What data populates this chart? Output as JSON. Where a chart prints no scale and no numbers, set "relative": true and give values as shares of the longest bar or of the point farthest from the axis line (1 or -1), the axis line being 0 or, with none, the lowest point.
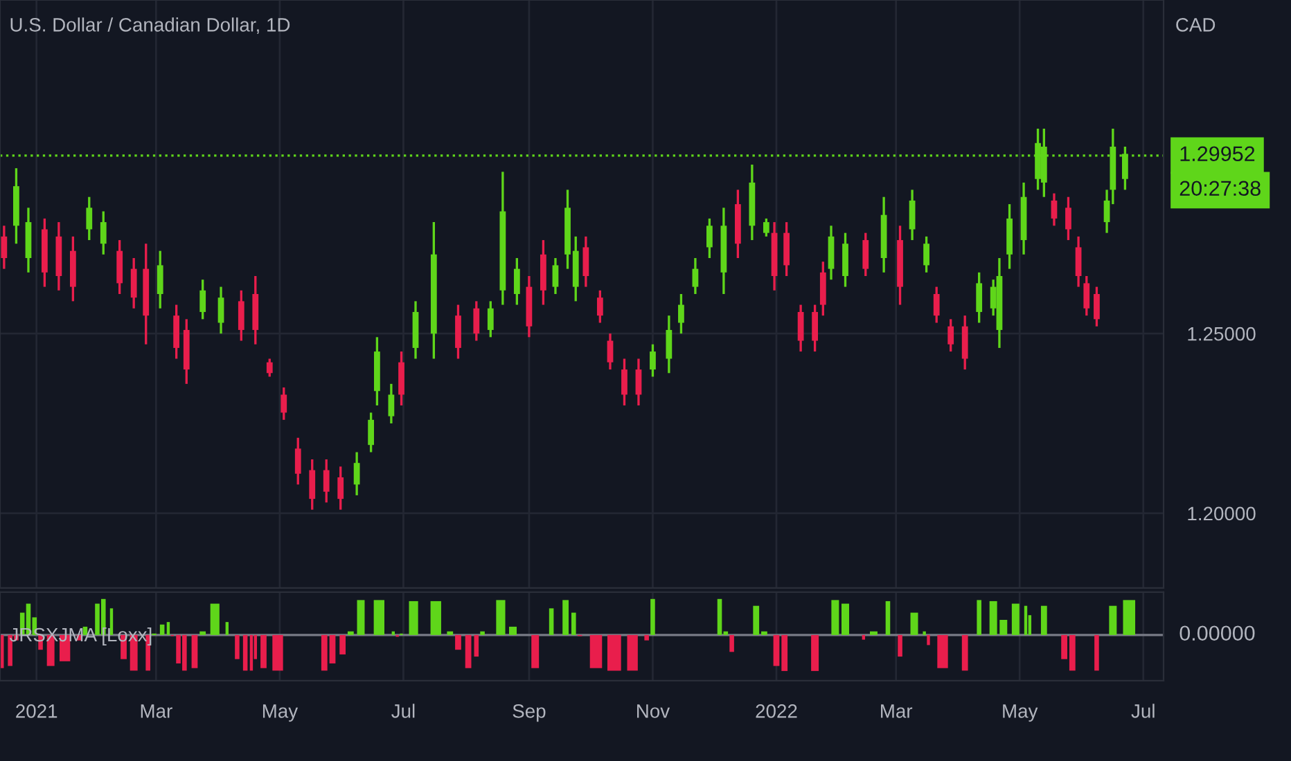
{
  "chart_data": [
    {
      "type": "candlestick",
      "title": "U.S. Dollar / Canadian Dollar, 1D",
      "ylabel": "CAD",
      "x": [
        "2020-12-16",
        "2020-12-22",
        "2020-12-28",
        "2021-01-05",
        "2021-01-12",
        "2021-01-19",
        "2021-01-27",
        "2021-02-03",
        "2021-02-11",
        "2021-02-18",
        "2021-02-24",
        "2021-03-03",
        "2021-03-11",
        "2021-03-16",
        "2021-03-24",
        "2021-04-02",
        "2021-04-12",
        "2021-04-19",
        "2021-04-26",
        "2021-05-03",
        "2021-05-10",
        "2021-05-17",
        "2021-05-24",
        "2021-05-31",
        "2021-06-08",
        "2021-06-15",
        "2021-06-18",
        "2021-06-25",
        "2021-06-30",
        "2021-07-07",
        "2021-07-16",
        "2021-07-28",
        "2021-08-06",
        "2021-08-13",
        "2021-08-19",
        "2021-08-26",
        "2021-09-01",
        "2021-09-08",
        "2021-09-14",
        "2021-09-20",
        "2021-09-24",
        "2021-09-29",
        "2021-10-06",
        "2021-10-11",
        "2021-10-18",
        "2021-10-25",
        "2021-11-01",
        "2021-11-09",
        "2021-11-15",
        "2021-11-22",
        "2021-11-29",
        "2021-12-06",
        "2021-12-13",
        "2021-12-20",
        "2021-12-27",
        "2021-12-31",
        "2022-01-06",
        "2022-01-13",
        "2022-01-20",
        "2022-01-24",
        "2022-01-28",
        "2022-02-04",
        "2022-02-14",
        "2022-02-23",
        "2022-03-03",
        "2022-03-09",
        "2022-03-16",
        "2022-03-21",
        "2022-03-28",
        "2022-04-04",
        "2022-04-11",
        "2022-04-18",
        "2022-04-21",
        "2022-04-26",
        "2022-05-03",
        "2022-05-10",
        "2022-05-13",
        "2022-05-18",
        "2022-05-25",
        "2022-05-30",
        "2022-06-03",
        "2022-06-08",
        "2022-06-13",
        "2022-06-16",
        "2022-06-22"
      ],
      "ohlc": [
        [
          1.277,
          1.28,
          1.268,
          1.271
        ],
        [
          1.28,
          1.296,
          1.275,
          1.291
        ],
        [
          1.271,
          1.285,
          1.267,
          1.281
        ],
        [
          1.279,
          1.282,
          1.263,
          1.267
        ],
        [
          1.277,
          1.281,
          1.262,
          1.266
        ],
        [
          1.273,
          1.277,
          1.259,
          1.263
        ],
        [
          1.279,
          1.288,
          1.276,
          1.285
        ],
        [
          1.275,
          1.284,
          1.272,
          1.281
        ],
        [
          1.273,
          1.276,
          1.261,
          1.264
        ],
        [
          1.268,
          1.271,
          1.257,
          1.26
        ],
        [
          1.268,
          1.275,
          1.247,
          1.255
        ],
        [
          1.261,
          1.273,
          1.257,
          1.269
        ],
        [
          1.255,
          1.258,
          1.243,
          1.246
        ],
        [
          1.251,
          1.254,
          1.236,
          1.24
        ],
        [
          1.256,
          1.265,
          1.254,
          1.262
        ],
        [
          1.253,
          1.263,
          1.25,
          1.26
        ],
        [
          1.259,
          1.262,
          1.248,
          1.251
        ],
        [
          1.261,
          1.266,
          1.247,
          1.251
        ],
        [
          1.242,
          1.243,
          1.238,
          1.239
        ],
        [
          1.233,
          1.235,
          1.226,
          1.228
        ],
        [
          1.218,
          1.221,
          1.208,
          1.211
        ],
        [
          1.212,
          1.215,
          1.201,
          1.204
        ],
        [
          1.212,
          1.215,
          1.203,
          1.206
        ],
        [
          1.21,
          1.213,
          1.201,
          1.204
        ],
        [
          1.208,
          1.217,
          1.205,
          1.214
        ],
        [
          1.219,
          1.228,
          1.217,
          1.226
        ],
        [
          1.234,
          1.249,
          1.23,
          1.245
        ],
        [
          1.227,
          1.236,
          1.225,
          1.233
        ],
        [
          1.242,
          1.245,
          1.23,
          1.233
        ],
        [
          1.246,
          1.259,
          1.243,
          1.256
        ],
        [
          1.25,
          1.281,
          1.243,
          1.272
        ],
        [
          1.255,
          1.258,
          1.243,
          1.246
        ],
        [
          1.257,
          1.259,
          1.248,
          1.25
        ],
        [
          1.251,
          1.259,
          1.249,
          1.257
        ],
        [
          1.262,
          1.295,
          1.258,
          1.284
        ],
        [
          1.261,
          1.271,
          1.258,
          1.268
        ],
        [
          1.263,
          1.266,
          1.249,
          1.252
        ],
        [
          1.272,
          1.276,
          1.258,
          1.262
        ],
        [
          1.263,
          1.271,
          1.261,
          1.269
        ],
        [
          1.272,
          1.29,
          1.268,
          1.285
        ],
        [
          1.263,
          1.277,
          1.259,
          1.273
        ],
        [
          1.274,
          1.277,
          1.263,
          1.266
        ],
        [
          1.26,
          1.262,
          1.253,
          1.255
        ],
        [
          1.248,
          1.25,
          1.24,
          1.242
        ],
        [
          1.24,
          1.243,
          1.23,
          1.233
        ],
        [
          1.24,
          1.243,
          1.23,
          1.233
        ],
        [
          1.24,
          1.247,
          1.238,
          1.245
        ],
        [
          1.243,
          1.255,
          1.239,
          1.251
        ],
        [
          1.253,
          1.261,
          1.25,
          1.258
        ],
        [
          1.263,
          1.271,
          1.261,
          1.268
        ],
        [
          1.274,
          1.282,
          1.271,
          1.28
        ],
        [
          1.267,
          1.285,
          1.261,
          1.28
        ],
        [
          1.286,
          1.29,
          1.271,
          1.275
        ],
        [
          1.28,
          1.297,
          1.276,
          1.292
        ],
        [
          1.278,
          1.282,
          1.277,
          1.281
        ],
        [
          1.278,
          1.281,
          1.262,
          1.266
        ],
        [
          1.278,
          1.281,
          1.266,
          1.269
        ],
        [
          1.256,
          1.258,
          1.245,
          1.248
        ],
        [
          1.256,
          1.258,
          1.245,
          1.248
        ],
        [
          1.267,
          1.27,
          1.255,
          1.258
        ],
        [
          1.268,
          1.28,
          1.265,
          1.277
        ],
        [
          1.266,
          1.278,
          1.263,
          1.275
        ],
        [
          1.276,
          1.278,
          1.266,
          1.268
        ],
        [
          1.271,
          1.288,
          1.267,
          1.283
        ],
        [
          1.276,
          1.28,
          1.258,
          1.263
        ],
        [
          1.279,
          1.29,
          1.276,
          1.287
        ],
        [
          1.269,
          1.277,
          1.267,
          1.275
        ],
        [
          1.261,
          1.263,
          1.253,
          1.255
        ],
        [
          1.252,
          1.254,
          1.245,
          1.247
        ],
        [
          1.252,
          1.255,
          1.24,
          1.243
        ],
        [
          1.256,
          1.267,
          1.253,
          1.264
        ],
        [
          1.257,
          1.265,
          1.255,
          1.263
        ],
        [
          1.251,
          1.271,
          1.246,
          1.266
        ],
        [
          1.272,
          1.286,
          1.268,
          1.282
        ],
        [
          1.276,
          1.292,
          1.272,
          1.288
        ],
        [
          1.293,
          1.307,
          1.29,
          1.303
        ],
        [
          1.292,
          1.307,
          1.288,
          1.302
        ],
        [
          1.287,
          1.289,
          1.28,
          1.282
        ],
        [
          1.285,
          1.288,
          1.276,
          1.279
        ],
        [
          1.274,
          1.277,
          1.263,
          1.266
        ],
        [
          1.264,
          1.266,
          1.255,
          1.257
        ],
        [
          1.261,
          1.263,
          1.252,
          1.254
        ],
        [
          1.281,
          1.29,
          1.278,
          1.287
        ],
        [
          1.29,
          1.307,
          1.286,
          1.302
        ],
        [
          1.293,
          1.302,
          1.29,
          1.3
        ]
      ],
      "colors": [
        "#e91e4c",
        "#5fd61a",
        "#5fd61a",
        "#e91e4c",
        "#e91e4c",
        "#e91e4c",
        "#5fd61a",
        "#5fd61a",
        "#e91e4c",
        "#e91e4c",
        "#e91e4c",
        "#5fd61a",
        "#e91e4c",
        "#e91e4c",
        "#5fd61a",
        "#5fd61a",
        "#e91e4c",
        "#e91e4c",
        "#e91e4c",
        "#e91e4c",
        "#e91e4c",
        "#e91e4c",
        "#e91e4c",
        "#e91e4c",
        "#5fd61a",
        "#5fd61a",
        "#5fd61a",
        "#5fd61a",
        "#e91e4c",
        "#5fd61a",
        "#5fd61a",
        "#e91e4c",
        "#e91e4c",
        "#5fd61a",
        "#5fd61a",
        "#5fd61a",
        "#e91e4c",
        "#e91e4c",
        "#5fd61a",
        "#5fd61a",
        "#5fd61a",
        "#e91e4c",
        "#e91e4c",
        "#e91e4c",
        "#e91e4c",
        "#e91e4c",
        "#5fd61a",
        "#5fd61a",
        "#5fd61a",
        "#5fd61a",
        "#5fd61a",
        "#5fd61a",
        "#e91e4c",
        "#5fd61a",
        "#5fd61a",
        "#e91e4c",
        "#e91e4c",
        "#e91e4c",
        "#e91e4c",
        "#e91e4c",
        "#5fd61a",
        "#5fd61a",
        "#e91e4c",
        "#5fd61a",
        "#e91e4c",
        "#5fd61a",
        "#5fd61a",
        "#e91e4c",
        "#e91e4c",
        "#e91e4c",
        "#5fd61a",
        "#5fd61a",
        "#5fd61a",
        "#5fd61a",
        "#5fd61a",
        "#5fd61a",
        "#5fd61a",
        "#e91e4c",
        "#e91e4c",
        "#e91e4c",
        "#e91e4c",
        "#e91e4c",
        "#5fd61a",
        "#5fd61a",
        "#5fd61a"
      ],
      "xlim": [
        "2020-12-14",
        "2022-07-11"
      ],
      "xticks": [
        {
          "value": "2021-01-01",
          "label": null
        },
        {
          "value": "2021-03-01",
          "label": null
        },
        {
          "value": "2021-05-01",
          "label": null
        },
        {
          "value": "2021-07-01",
          "label": null
        },
        {
          "value": "2021-09-01",
          "label": null
        },
        {
          "value": "2021-11-01",
          "label": null
        },
        {
          "value": "2022-01-01",
          "label": null
        },
        {
          "value": "2022-03-01",
          "label": null
        },
        {
          "value": "2022-05-01",
          "label": null
        },
        {
          "value": "2022-07-01",
          "label": null
        }
      ],
      "ylim": [
        1.1792,
        1.3428
      ],
      "yticks": [
        {
          "value": 1.2,
          "label": "1.20000"
        },
        {
          "value": 1.25,
          "label": "1.25000"
        }
      ],
      "ref_lines": [
        {
          "axis": "y",
          "value": 1.29952,
          "label": "1.29952",
          "color": "#5fd61a",
          "line_style": "dotted"
        }
      ],
      "annotations": [
        "20:27:38"
      ],
      "grid": true,
      "tick_labels": "y"
    },
    {
      "type": "bar",
      "title": "JRSXJMA [Loxx]",
      "relative": true,
      "x": [
        "2020-12-14",
        "2020-12-19",
        "2020-12-22",
        "2020-12-25",
        "2020-12-28",
        "2020-12-31",
        "2021-01-03",
        "2021-01-08",
        "2021-01-15",
        "2021-01-22",
        "2021-01-25",
        "2021-01-31",
        "2021-02-03",
        "2021-02-07",
        "2021-02-09",
        "2021-02-13",
        "2021-02-18",
        "2021-02-25",
        "2021-02-28",
        "2021-03-04",
        "2021-03-07",
        "2021-03-09",
        "2021-03-12",
        "2021-03-15",
        "2021-03-20",
        "2021-03-24",
        "2021-03-30",
        "2021-04-05",
        "2021-04-07",
        "2021-04-10",
        "2021-04-14",
        "2021-04-17",
        "2021-04-19",
        "2021-04-23",
        "2021-04-30",
        "2021-05-23",
        "2021-05-27",
        "2021-06-01",
        "2021-06-05",
        "2021-06-10",
        "2021-06-19",
        "2021-06-26",
        "2021-06-28",
        "2021-06-30",
        "2021-07-06",
        "2021-07-17",
        "2021-07-24",
        "2021-07-28",
        "2021-08-02",
        "2021-08-06",
        "2021-08-09",
        "2021-08-18",
        "2021-08-24",
        "2021-08-29",
        "2021-09-04",
        "2021-09-09",
        "2021-09-12",
        "2021-09-19",
        "2021-09-23",
        "2021-09-26",
        "2021-10-04",
        "2021-10-13",
        "2021-10-22",
        "2021-10-29",
        "2021-11-01",
        "2021-12-04",
        "2021-12-07",
        "2021-12-10",
        "2021-12-13",
        "2021-12-22",
        "2021-12-26",
        "2022-01-01",
        "2022-01-05",
        "2022-01-20",
        "2022-01-25",
        "2022-01-30",
        "2022-02-04",
        "2022-02-11",
        "2022-02-13",
        "2022-02-18",
        "2022-02-25",
        "2022-02-28",
        "2022-03-03",
        "2022-03-10",
        "2022-03-15",
        "2022-03-17",
        "2022-03-24",
        "2022-04-04",
        "2022-04-08",
        "2022-04-11",
        "2022-04-18",
        "2022-04-23",
        "2022-04-29",
        "2022-05-04",
        "2022-05-06",
        "2022-05-13",
        "2022-05-17",
        "2022-05-23",
        "2022-05-27",
        "2022-06-08",
        "2022-06-11",
        "2022-06-16",
        "2022-06-24"
      ],
      "values": [
        -0.92,
        -0.86,
        -0.15,
        0.62,
        0.87,
        0.49,
        -0.41,
        -0.86,
        -0.73,
        -0.15,
        0.23,
        0.87,
        1.0,
        0.74,
        0,
        -0.67,
        -0.99,
        -0.99,
        0.04,
        0.29,
        0.36,
        -0.03,
        -0.79,
        -0.99,
        -0.92,
        0.1,
        0.87,
        0.36,
        0,
        -0.67,
        -0.99,
        -0.99,
        -0.67,
        -0.92,
        -0.99,
        -0.99,
        -0.79,
        -0.54,
        0.1,
        0.97,
        0.97,
        0.1,
        -0.05,
        0.04,
        0.94,
        0.94,
        0.1,
        -0.41,
        -0.92,
        -0.6,
        0.1,
        0.97,
        0.23,
        0,
        -0.92,
        0,
        0.74,
        0.97,
        0.62,
        -0.03,
        -0.92,
        -0.99,
        -0.99,
        -0.15,
        1.0,
        1.0,
        0.1,
        -0.47,
        0,
        0.81,
        0.1,
        -0.86,
        -1.0,
        -1.0,
        0,
        0.97,
        0.87,
        0,
        -0.13,
        0.1,
        0.94,
        0,
        -0.6,
        0.62,
        0.1,
        -0.28,
        -0.92,
        -0.99,
        0,
        0.97,
        0.94,
        0.42,
        0.87,
        0.81,
        0.55,
        0.81,
        0,
        -0.67,
        -0.99,
        -0.99,
        0,
        0.81,
        0.97
      ],
      "colors": [
        "#e91e4c",
        "#e91e4c",
        "#e91e4c",
        "#5fd61a",
        "#5fd61a",
        "#5fd61a",
        "#e91e4c",
        "#e91e4c",
        "#e91e4c",
        "#e91e4c",
        "#5fd61a",
        "#5fd61a",
        "#5fd61a",
        "#5fd61a",
        "#5fd61a",
        "#e91e4c",
        "#e91e4c",
        "#e91e4c",
        "#5fd61a",
        "#5fd61a",
        "#5fd61a",
        "#e91e4c",
        "#e91e4c",
        "#e91e4c",
        "#e91e4c",
        "#5fd61a",
        "#5fd61a",
        "#5fd61a",
        "#5fd61a",
        "#e91e4c",
        "#e91e4c",
        "#e91e4c",
        "#e91e4c",
        "#e91e4c",
        "#e91e4c",
        "#e91e4c",
        "#e91e4c",
        "#e91e4c",
        "#5fd61a",
        "#5fd61a",
        "#5fd61a",
        "#5fd61a",
        "#e91e4c",
        "#5fd61a",
        "#5fd61a",
        "#5fd61a",
        "#5fd61a",
        "#e91e4c",
        "#e91e4c",
        "#e91e4c",
        "#5fd61a",
        "#5fd61a",
        "#5fd61a",
        "#5fd61a",
        "#e91e4c",
        "#5fd61a",
        "#5fd61a",
        "#5fd61a",
        "#5fd61a",
        "#e91e4c",
        "#e91e4c",
        "#e91e4c",
        "#e91e4c",
        "#e91e4c",
        "#5fd61a",
        "#5fd61a",
        "#5fd61a",
        "#e91e4c",
        "#5fd61a",
        "#5fd61a",
        "#5fd61a",
        "#e91e4c",
        "#e91e4c",
        "#e91e4c",
        "#5fd61a",
        "#5fd61a",
        "#5fd61a",
        "#5fd61a",
        "#e91e4c",
        "#5fd61a",
        "#5fd61a",
        "#5fd61a",
        "#e91e4c",
        "#5fd61a",
        "#5fd61a",
        "#e91e4c",
        "#e91e4c",
        "#e91e4c",
        "#5fd61a",
        "#5fd61a",
        "#5fd61a",
        "#5fd61a",
        "#5fd61a",
        "#5fd61a",
        "#5fd61a",
        "#5fd61a",
        "#5fd61a",
        "#e91e4c",
        "#e91e4c",
        "#e91e4c",
        "#5fd61a",
        "#5fd61a",
        "#5fd61a"
      ],
      "xlim": [
        "2020-12-14",
        "2022-07-11"
      ],
      "xticks": [
        {
          "value": "2021-01-01",
          "label": "2021"
        },
        {
          "value": "2021-03-01",
          "label": "Mar"
        },
        {
          "value": "2021-05-01",
          "label": "May"
        },
        {
          "value": "2021-07-01",
          "label": "Jul"
        },
        {
          "value": "2021-09-01",
          "label": "Sep"
        },
        {
          "value": "2021-11-01",
          "label": "Nov"
        },
        {
          "value": "2022-01-01",
          "label": "2022"
        },
        {
          "value": "2022-03-01",
          "label": "Mar"
        },
        {
          "value": "2022-05-01",
          "label": "May"
        },
        {
          "value": "2022-07-01",
          "label": "Jul"
        }
      ],
      "ref_lines": [
        {
          "axis": "y",
          "value": 0,
          "label": "0.00000",
          "color": "#787b86"
        }
      ],
      "grid": "x",
      "tick_labels": "x"
    }
  ]
}
